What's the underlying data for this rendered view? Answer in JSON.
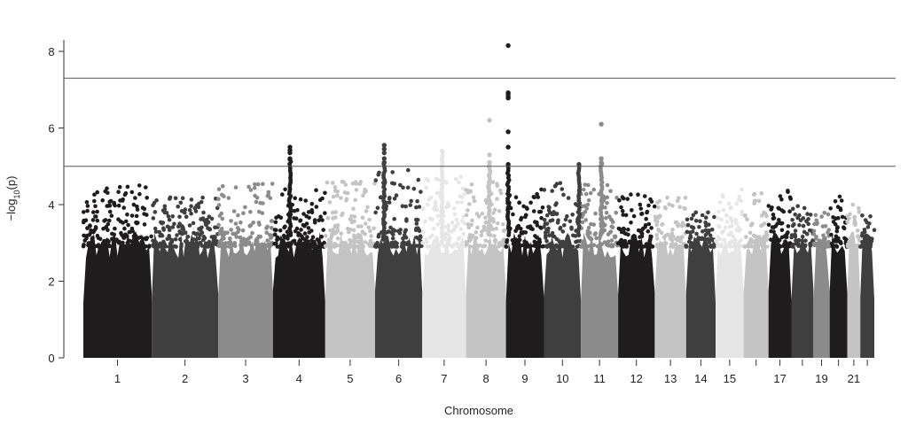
{
  "chart_data": {
    "type": "scatter",
    "title": "",
    "xlabel": "Chromosome",
    "ylabel_prefix": "−log",
    "ylabel_sub": "10",
    "ylabel_suffix": "(p)",
    "ylim": [
      0,
      8.3
    ],
    "y_ticks": [
      0,
      2,
      4,
      6,
      8
    ],
    "x_tick_labels": [
      "1",
      "2",
      "3",
      "4",
      "5",
      "6",
      "7",
      "8",
      "9",
      "10",
      "11",
      "12",
      "13",
      "14",
      "15",
      "17",
      "19",
      "21"
    ],
    "thresholds": [
      7.3,
      5.0
    ],
    "grid": false,
    "legend": "none",
    "colors": {
      "black": "#1e1c1d",
      "dark": "#3f3f3f",
      "mid": "#8b8b8b",
      "light": "#c4c4c4",
      "vlight": "#e6e6e6"
    },
    "chromosomes": [
      {
        "chr": "1",
        "start": 0,
        "end": 248,
        "color": "black",
        "max": 4.5
      },
      {
        "chr": "2",
        "start": 248,
        "end": 490,
        "color": "dark",
        "max": 4.2
      },
      {
        "chr": "3",
        "start": 490,
        "end": 688,
        "color": "mid",
        "max": 4.6
      },
      {
        "chr": "4",
        "start": 688,
        "end": 878,
        "color": "black",
        "max": 4.4
      },
      {
        "chr": "5",
        "start": 878,
        "end": 1059,
        "color": "light",
        "max": 4.6
      },
      {
        "chr": "6",
        "start": 1059,
        "end": 1230,
        "color": "dark",
        "max": 4.9
      },
      {
        "chr": "7",
        "start": 1230,
        "end": 1389,
        "color": "vlight",
        "max": 4.8
      },
      {
        "chr": "8",
        "start": 1389,
        "end": 1534,
        "color": "light",
        "max": 4.6
      },
      {
        "chr": "9",
        "start": 1534,
        "end": 1672,
        "color": "black",
        "max": 4.4
      },
      {
        "chr": "10",
        "start": 1672,
        "end": 1806,
        "color": "dark",
        "max": 4.6
      },
      {
        "chr": "11",
        "start": 1806,
        "end": 1941,
        "color": "mid",
        "max": 4.6
      },
      {
        "chr": "12",
        "start": 1941,
        "end": 2074,
        "color": "black",
        "max": 4.4
      },
      {
        "chr": "13",
        "start": 2074,
        "end": 2188,
        "color": "light",
        "max": 4.2
      },
      {
        "chr": "14",
        "start": 2188,
        "end": 2295,
        "color": "dark",
        "max": 3.8
      },
      {
        "chr": "15",
        "start": 2295,
        "end": 2397,
        "color": "vlight",
        "max": 4.4
      },
      {
        "chr": "16",
        "start": 2397,
        "end": 2487,
        "color": "light",
        "max": 4.4
      },
      {
        "chr": "17",
        "start": 2487,
        "end": 2570,
        "color": "black",
        "max": 4.4
      },
      {
        "chr": "18",
        "start": 2570,
        "end": 2650,
        "color": "dark",
        "max": 4.0
      },
      {
        "chr": "19",
        "start": 2650,
        "end": 2709,
        "color": "mid",
        "max": 3.9
      },
      {
        "chr": "20",
        "start": 2709,
        "end": 2773,
        "color": "black",
        "max": 4.3
      },
      {
        "chr": "21",
        "start": 2773,
        "end": 2820,
        "color": "light",
        "max": 4.1
      },
      {
        "chr": "22",
        "start": 2820,
        "end": 2871,
        "color": "dark",
        "max": 3.8
      }
    ],
    "top_hits": [
      {
        "chr": "4",
        "pos": 750,
        "values": [
          5.5,
          5.42,
          5.35,
          5.2
        ]
      },
      {
        "chr": "6",
        "pos": 1092,
        "values": [
          5.55,
          5.45,
          5.35,
          5.2,
          5.1
        ]
      },
      {
        "chr": "7",
        "pos": 1302,
        "values": [
          5.4
        ]
      },
      {
        "chr": "8",
        "pos": 1474,
        "values": [
          6.2,
          5.3,
          5.1
        ]
      },
      {
        "chr": "9",
        "pos": 1542,
        "values": [
          8.15,
          6.92,
          6.88,
          6.82,
          6.78,
          5.9,
          5.5,
          5.05
        ]
      },
      {
        "chr": "10",
        "pos": 1799,
        "values": [
          5.05
        ]
      },
      {
        "chr": "11",
        "pos": 1880,
        "values": [
          6.1,
          5.2,
          5.1
        ]
      }
    ]
  }
}
